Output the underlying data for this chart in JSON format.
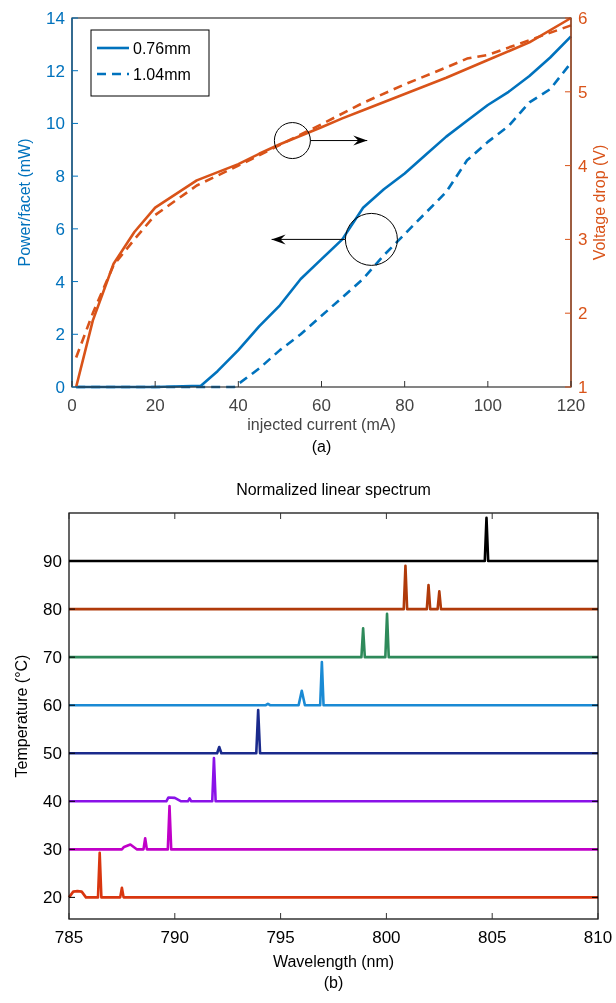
{
  "chart_data": [
    {
      "type": "line",
      "xlabel": "injected current (mA)",
      "ylabel": "Power/facet (mW)",
      "y2label": "Voltage drop (V)",
      "xlim": [
        0,
        120
      ],
      "xticks": [
        0,
        20,
        40,
        60,
        80,
        100,
        120
      ],
      "ylim": [
        0,
        14
      ],
      "yticks": [
        0,
        2,
        4,
        6,
        8,
        10,
        12,
        14
      ],
      "y2lim": [
        1,
        6
      ],
      "y2ticks": [
        1,
        2,
        3,
        4,
        5,
        6
      ],
      "legend": "top left",
      "annotations": [
        "(a)"
      ],
      "series": [
        {
          "name": "0.76mm",
          "color": "#0072bd",
          "line_style": "solid",
          "x": [
            1,
            10,
            20,
            31,
            35,
            40,
            45,
            50,
            55,
            60,
            65,
            70,
            75,
            80,
            85,
            90,
            95,
            100,
            105,
            110,
            115,
            120
          ],
          "values": [
            0,
            0,
            0,
            0.05,
            0.6,
            1.4,
            2.3,
            3.1,
            4.1,
            4.85,
            5.6,
            6.8,
            7.5,
            8.1,
            8.8,
            9.5,
            10.1,
            10.7,
            11.2,
            11.8,
            12.5,
            13.3
          ]
        },
        {
          "name": "1.04mm",
          "color": "#0072bd",
          "line_style": "dashed",
          "x": [
            1,
            10,
            20,
            30,
            39,
            45,
            50,
            55,
            60,
            65,
            70,
            75,
            80,
            85,
            90,
            95,
            100,
            105,
            110,
            115,
            120
          ],
          "values": [
            0,
            0,
            0,
            0,
            0,
            0.7,
            1.4,
            2.0,
            2.7,
            3.4,
            4.1,
            5.0,
            5.8,
            6.6,
            7.4,
            8.6,
            9.3,
            9.9,
            10.8,
            11.3,
            12.3
          ]
        },
        {
          "color": "#d95319",
          "line_style": "solid",
          "axis": "y2",
          "x": [
            1,
            5,
            10,
            15,
            20,
            30,
            40,
            45,
            50,
            60,
            65,
            70,
            80,
            90,
            100,
            110,
            120
          ],
          "values": [
            1.0,
            1.9,
            2.67,
            3.1,
            3.43,
            3.8,
            4.02,
            4.16,
            4.29,
            4.52,
            4.64,
            4.75,
            4.97,
            5.19,
            5.43,
            5.67,
            6.0
          ]
        },
        {
          "color": "#d95319",
          "line_style": "dashed",
          "axis": "y2",
          "x": [
            1,
            5,
            10,
            15,
            20,
            30,
            40,
            50,
            60,
            70,
            80,
            90,
            95,
            100,
            110,
            120
          ],
          "values": [
            1.4,
            2.0,
            2.65,
            3.0,
            3.33,
            3.73,
            4.0,
            4.28,
            4.56,
            4.85,
            5.1,
            5.33,
            5.45,
            5.5,
            5.7,
            5.9
          ]
        }
      ]
    },
    {
      "type": "line",
      "title": "Normalized linear spectrum",
      "xlabel": "Wavelength (nm)",
      "ylabel": "Temperature (°C)",
      "xlim": [
        785,
        810
      ],
      "xticks": [
        785,
        790,
        795,
        800,
        805,
        810
      ],
      "ylim": [
        15.5,
        100
      ],
      "yticks": [
        20,
        30,
        40,
        50,
        60,
        70,
        80,
        90
      ],
      "annotations": [
        "(b)"
      ],
      "series": [
        {
          "color": "#d9360f",
          "x": [
            785,
            785.2,
            785.4,
            785.6,
            785.8,
            786.37,
            786.45,
            786.53,
            787.42,
            787.5,
            787.58,
            810
          ],
          "values": [
            20,
            21.2,
            21.3,
            21.2,
            20,
            20,
            29.3,
            20,
            20,
            22,
            20,
            20
          ]
        },
        {
          "color": "#c000c8",
          "x": [
            785,
            787.5,
            787.6,
            787.9,
            788.2,
            788.52,
            788.6,
            788.68,
            789.67,
            789.75,
            789.83,
            810
          ],
          "values": [
            30,
            30,
            30.5,
            31,
            30,
            30,
            32.3,
            30,
            30,
            39,
            30,
            30
          ]
        },
        {
          "color": "#8a12e8",
          "x": [
            785,
            789.6,
            789.7,
            790.0,
            790.3,
            790.62,
            790.7,
            790.78,
            791.77,
            791.85,
            791.93,
            810
          ],
          "values": [
            40,
            40,
            40.8,
            40.7,
            40,
            40,
            40.6,
            40,
            40,
            49,
            40,
            40
          ]
        },
        {
          "color": "#1a2a8c",
          "x": [
            785,
            792.0,
            792.1,
            792.2,
            793.85,
            793.94,
            794.03,
            810
          ],
          "values": [
            50,
            50,
            51.3,
            50,
            50,
            59,
            50,
            50
          ]
        },
        {
          "color": "#1a8ad4",
          "x": [
            785,
            794.3,
            794.4,
            794.5,
            795.85,
            796.0,
            796.15,
            796.87,
            796.95,
            797.03,
            810
          ],
          "values": [
            60,
            60,
            60.3,
            60,
            60,
            63,
            60,
            60,
            69,
            60,
            60
          ]
        },
        {
          "color": "#2e8a5a",
          "x": [
            785,
            798.82,
            798.9,
            798.98,
            799.95,
            800.03,
            800.11,
            810
          ],
          "values": [
            70,
            70,
            76,
            70,
            70,
            79,
            70,
            70
          ]
        },
        {
          "color": "#b03a0a",
          "x": [
            785,
            800.82,
            800.9,
            800.98,
            801.91,
            801.99,
            802.07,
            802.42,
            802.5,
            802.58,
            810
          ],
          "values": [
            80,
            80,
            89,
            80,
            80,
            85,
            80,
            80,
            83.7,
            80,
            80
          ]
        },
        {
          "color": "#000000",
          "x": [
            785,
            804.65,
            804.73,
            804.81,
            810
          ],
          "values": [
            90,
            90,
            99,
            90,
            90
          ]
        }
      ]
    }
  ]
}
